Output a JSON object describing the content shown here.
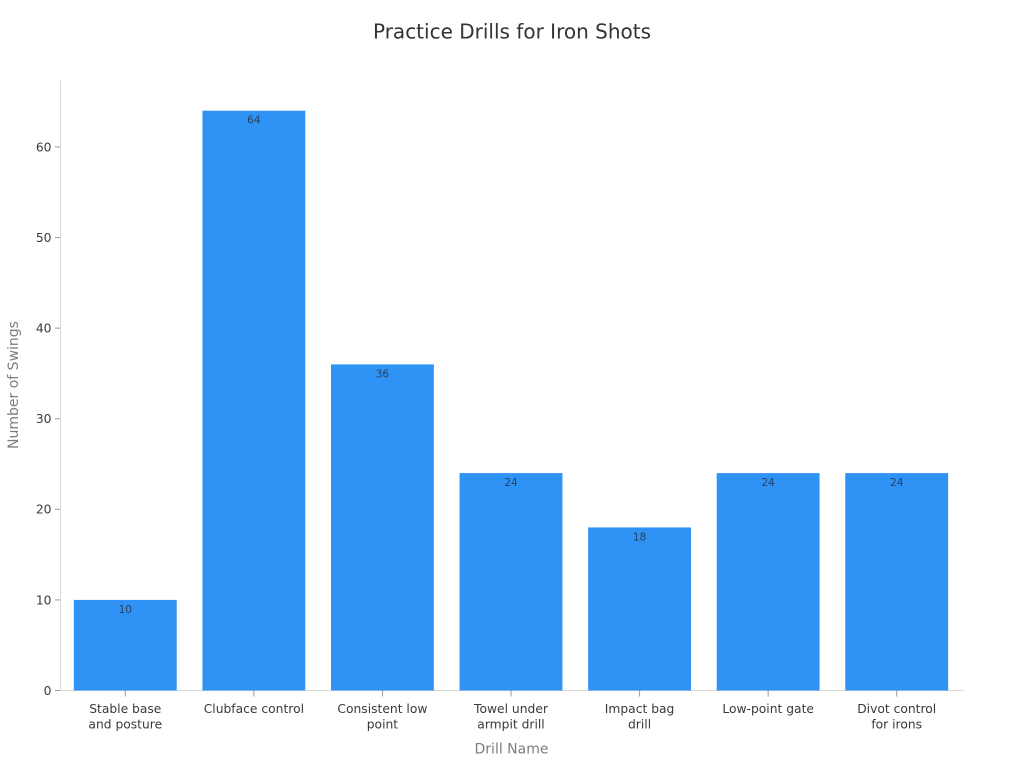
{
  "chart_data": {
    "type": "bar",
    "title": "Practice Drills for Iron Shots",
    "xlabel": "Drill Name",
    "ylabel": "Number of Swings",
    "categories": [
      "Stable base and posture",
      "Clubface control",
      "Consistent low point",
      "Towel under armpit drill",
      "Impact bag drill",
      "Low-point gate",
      "Divot control for irons"
    ],
    "category_lines": [
      [
        "Stable base",
        "and posture"
      ],
      [
        "Clubface control"
      ],
      [
        "Consistent low",
        "point"
      ],
      [
        "Towel under",
        "armpit drill"
      ],
      [
        "Impact bag",
        "drill"
      ],
      [
        "Low-point gate"
      ],
      [
        "Divot control",
        "for irons"
      ]
    ],
    "values": [
      10,
      64,
      36,
      24,
      18,
      24,
      24
    ],
    "value_labels": [
      "10",
      "64",
      "36",
      "24",
      "18",
      "24",
      "24"
    ],
    "yticks": [
      0,
      10,
      20,
      30,
      40,
      50,
      60
    ],
    "ylim": [
      0,
      67.37
    ],
    "grid": false,
    "legend": false,
    "colors": {
      "bar": "#2e93f5",
      "title_text": "#333333",
      "tick_text": "#3a3a3a",
      "axis_title_text": "#7d7d7d",
      "value_text": "#2a3f5f",
      "axis_line": "#d9d9d9",
      "tick_mark": "#9a9a9a",
      "background": "#ffffff"
    }
  }
}
